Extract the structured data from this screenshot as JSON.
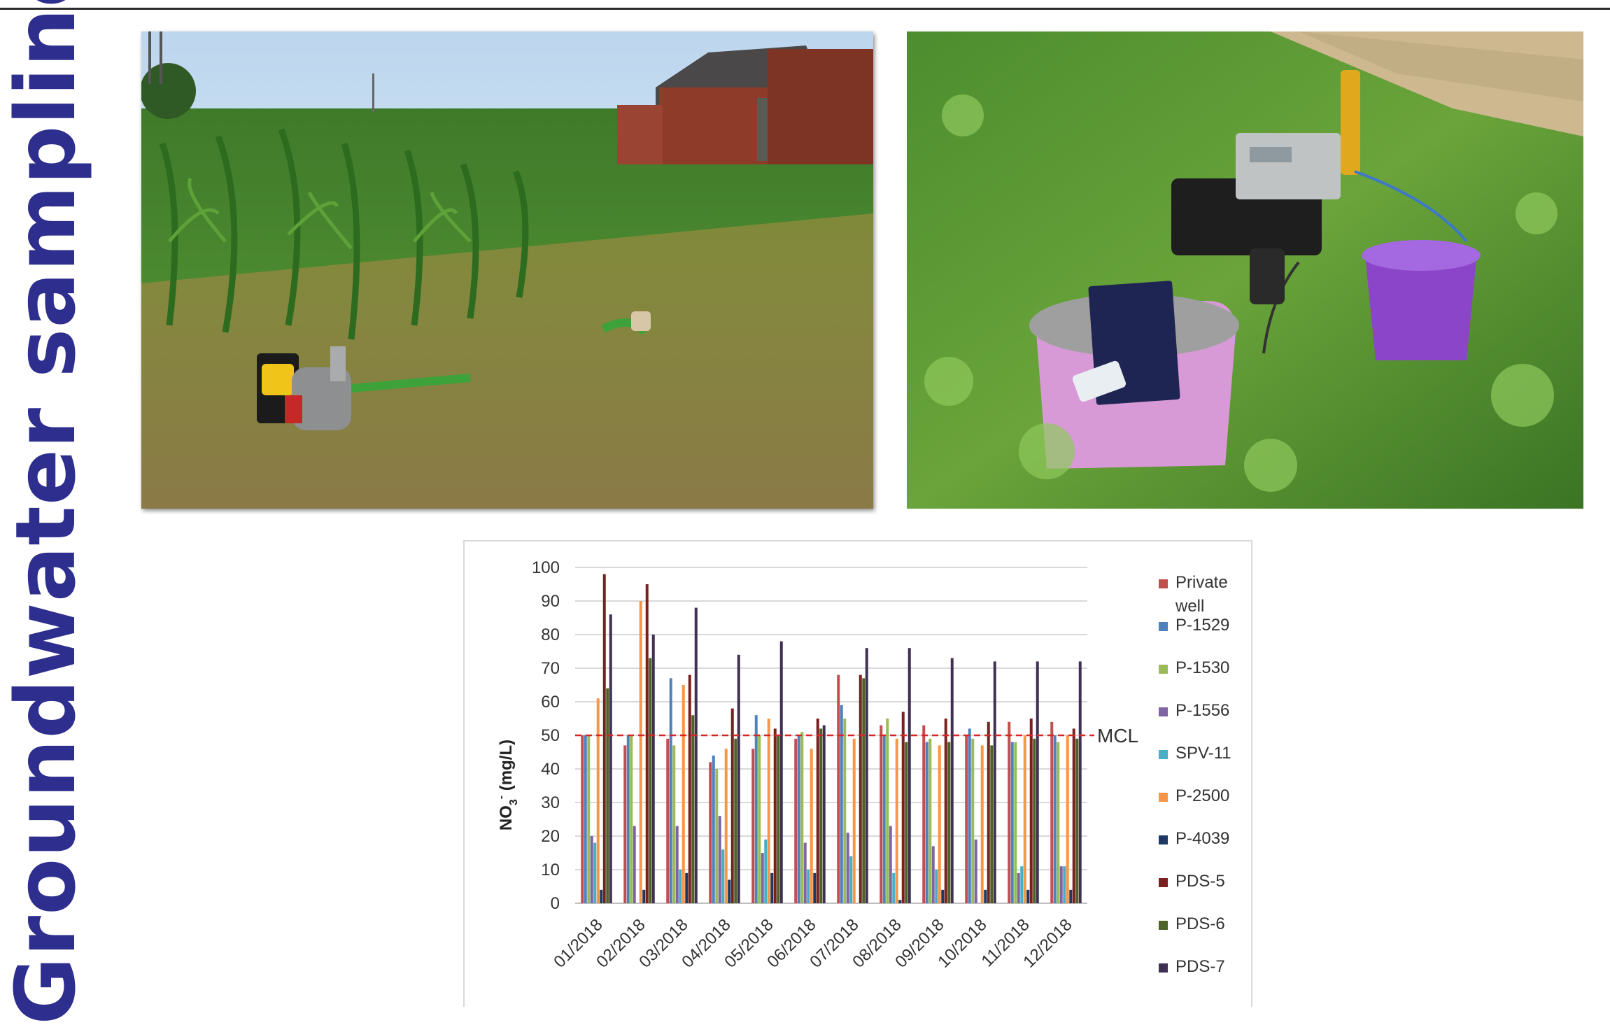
{
  "title": "Groundwater sampling",
  "photos": {
    "field": "pump-in-cornfield-photo",
    "kit": "sampling-kit-photo"
  },
  "chart_data": {
    "type": "bar",
    "ylabel": "NO3- (mg/L)",
    "ylabel_main": "NO",
    "ylabel_sub": "3",
    "ylabel_sup": "-",
    "ylabel_unit": " (mg/L)",
    "ylim": [
      0,
      100
    ],
    "yticks": [
      0,
      10,
      20,
      30,
      40,
      50,
      60,
      70,
      80,
      90,
      100
    ],
    "grid": true,
    "legend_position": "right",
    "reference_line": {
      "label": "MCL",
      "value": 50,
      "color": "#d62728"
    },
    "categories": [
      "01/2018",
      "02/2018",
      "03/2018",
      "04/2018",
      "05/2018",
      "06/2018",
      "07/2018",
      "08/2018",
      "09/2018",
      "10/2018",
      "11/2018",
      "12/2018"
    ],
    "series": [
      {
        "name": "Private well",
        "color": "#c0504d",
        "values": [
          50,
          47,
          49,
          42,
          46,
          49,
          68,
          53,
          53,
          50,
          54,
          54
        ]
      },
      {
        "name": "P-1529",
        "color": "#4f81bd",
        "values": [
          50,
          50,
          67,
          44,
          56,
          50,
          59,
          50,
          48,
          52,
          48,
          50
        ]
      },
      {
        "name": "P-1530",
        "color": "#9bbb59",
        "values": [
          50,
          50,
          47,
          40,
          50,
          51,
          55,
          55,
          49,
          49,
          48,
          48
        ]
      },
      {
        "name": "P-1556",
        "color": "#8064a2",
        "values": [
          20,
          23,
          23,
          26,
          15,
          18,
          21,
          23,
          17,
          19,
          9,
          11
        ]
      },
      {
        "name": "SPV-11",
        "color": "#4bacc6",
        "values": [
          18,
          0,
          10,
          16,
          19,
          10,
          14,
          9,
          10,
          0,
          11,
          11
        ]
      },
      {
        "name": "P-2500",
        "color": "#f79646",
        "values": [
          61,
          90,
          65,
          46,
          55,
          46,
          49,
          49,
          47,
          47,
          50,
          50
        ]
      },
      {
        "name": "P-4039",
        "color": "#1f3864",
        "values": [
          4,
          4,
          9,
          7,
          9,
          9,
          0,
          1,
          4,
          4,
          4,
          4
        ]
      },
      {
        "name": "PDS-5",
        "color": "#7b2020",
        "values": [
          98,
          95,
          68,
          58,
          52,
          55,
          68,
          57,
          55,
          54,
          55,
          52
        ]
      },
      {
        "name": "PDS-6",
        "color": "#4f6228",
        "values": [
          64,
          73,
          56,
          49,
          50,
          52,
          67,
          48,
          48,
          47,
          49,
          49
        ]
      },
      {
        "name": "PDS-7",
        "color": "#403152",
        "values": [
          86,
          80,
          88,
          74,
          78,
          53,
          76,
          76,
          73,
          72,
          72,
          72
        ]
      }
    ]
  }
}
